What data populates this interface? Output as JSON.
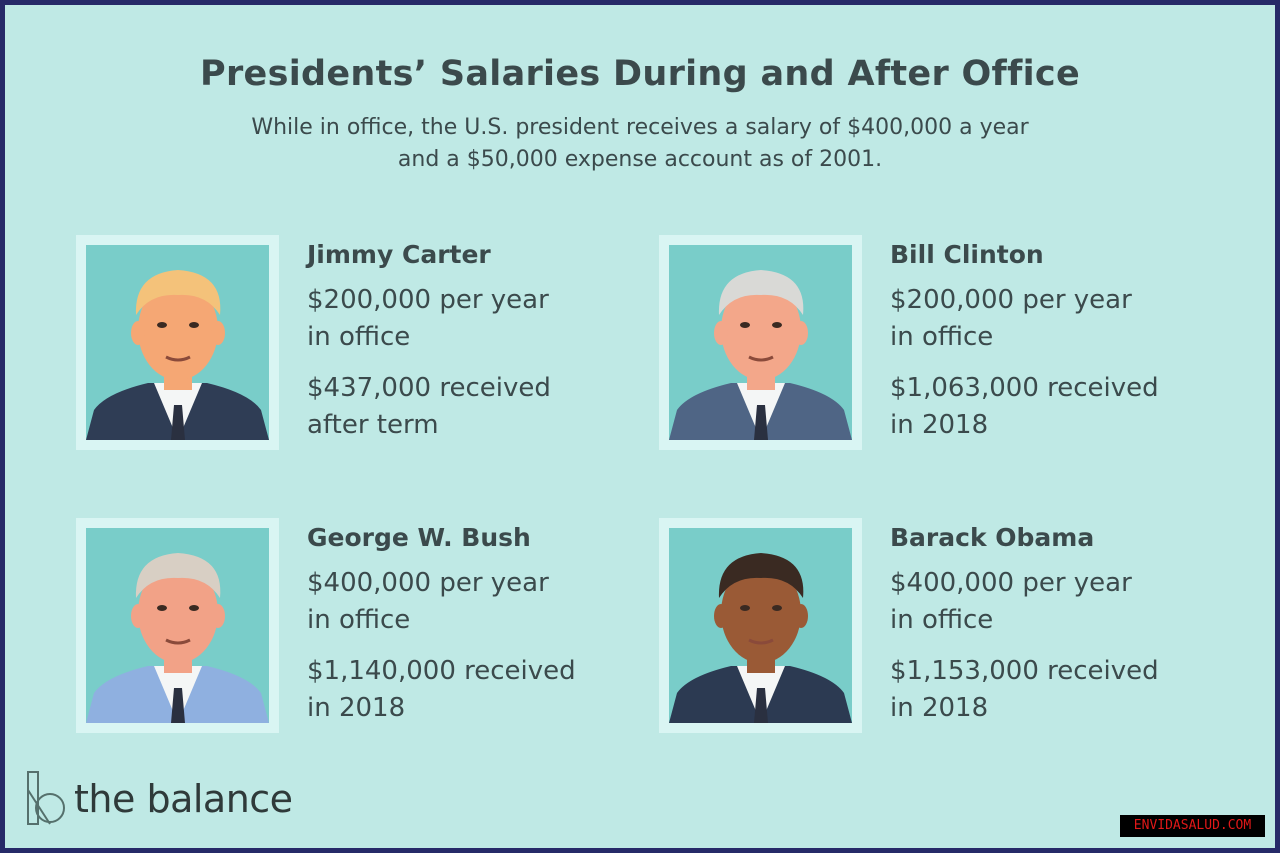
{
  "title": "Presidents’ Salaries During and After Office",
  "subtitle": [
    "While in office, the U.S. president receives a salary of $400,000 a year",
    "and a $50,000 expense account as of 2001."
  ],
  "presidents": [
    {
      "name": "Jimmy Carter",
      "salary": [
        "$200,000 per year",
        "in office"
      ],
      "after": [
        "$437,000 received",
        "after term"
      ],
      "hair": "#f4c27a",
      "skin": "#f5a774",
      "suit": "#2f3d55"
    },
    {
      "name": "Bill Clinton",
      "salary": [
        "$200,000 per year",
        "in office"
      ],
      "after": [
        "$1,063,000 received",
        "in 2018"
      ],
      "hair": "#d9d9d6",
      "skin": "#f3a78a",
      "suit": "#4f6585"
    },
    {
      "name": "George W. Bush",
      "salary": [
        "$400,000 per year",
        "in office"
      ],
      "after": [
        "$1,140,000 received",
        "in 2018"
      ],
      "hair": "#d8cfc4",
      "skin": "#f2a287",
      "suit": "#8fb0e0"
    },
    {
      "name": "Barack Obama",
      "salary": [
        "$400,000 per year",
        "in office"
      ],
      "after": [
        "$1,153,000 received",
        "in 2018"
      ],
      "hair": "#3a2a22",
      "skin": "#9a5a36",
      "suit": "#2c3a52"
    }
  ],
  "logo": "the balance",
  "watermark": "ENVIDASALUD.COM",
  "colors": {
    "background": "#bfe9e5",
    "border": "#262a68",
    "text": "#3b4a4c",
    "portrait_bg": "#79cdc9"
  }
}
